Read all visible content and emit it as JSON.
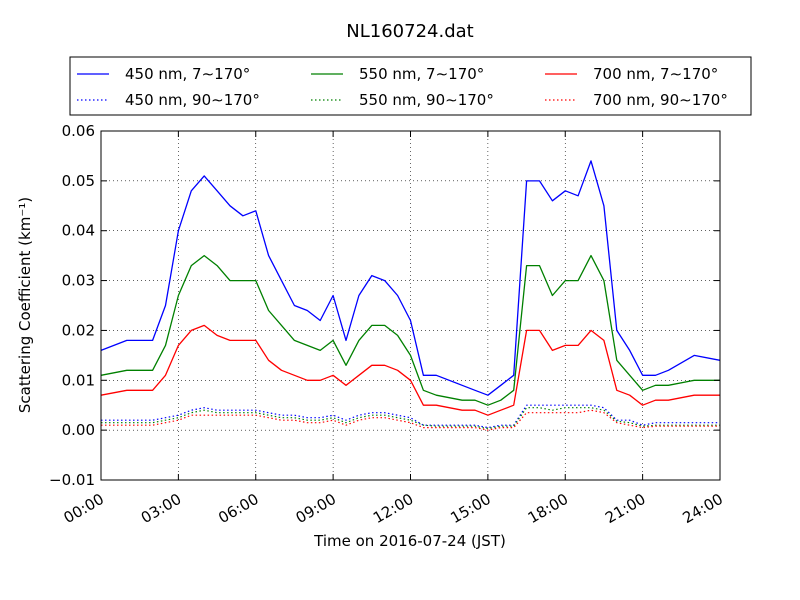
{
  "chart_data": {
    "type": "line",
    "title": "NL160724.dat",
    "xlabel": "Time on 2016-07-24 (JST)",
    "ylabel": "Scattering Coefficient (km⁻¹)",
    "xlim": [
      "00:00",
      "24:00"
    ],
    "ylim": [
      -0.01,
      0.06
    ],
    "x_ticks": [
      "00:00",
      "03:00",
      "06:00",
      "09:00",
      "12:00",
      "15:00",
      "18:00",
      "21:00",
      "24:00"
    ],
    "y_ticks": [
      "−0.01",
      "0.00",
      "0.01",
      "0.02",
      "0.03",
      "0.04",
      "0.05",
      "0.06"
    ],
    "grid": true,
    "legend_position": "top",
    "x": [
      "00:00",
      "01:00",
      "02:00",
      "02:30",
      "03:00",
      "03:30",
      "04:00",
      "04:30",
      "05:00",
      "05:30",
      "06:00",
      "06:30",
      "07:00",
      "07:30",
      "08:00",
      "08:30",
      "09:00",
      "09:30",
      "10:00",
      "10:30",
      "11:00",
      "11:30",
      "12:00",
      "12:30",
      "13:00",
      "14:00",
      "14:30",
      "15:00",
      "15:30",
      "16:00",
      "16:30",
      "17:00",
      "17:30",
      "18:00",
      "18:30",
      "19:00",
      "19:30",
      "20:00",
      "20:30",
      "21:00",
      "21:30",
      "22:00",
      "23:00",
      "24:00"
    ],
    "series": [
      {
        "name": "450 nm, 7∼170°",
        "color": "#0000ff",
        "style": "solid",
        "values": [
          0.016,
          0.018,
          0.018,
          0.025,
          0.04,
          0.048,
          0.051,
          0.048,
          0.045,
          0.043,
          0.044,
          0.035,
          0.03,
          0.025,
          0.024,
          0.022,
          0.027,
          0.018,
          0.027,
          0.031,
          0.03,
          0.027,
          0.022,
          0.011,
          0.011,
          0.009,
          0.008,
          0.007,
          0.009,
          0.011,
          0.05,
          0.05,
          0.046,
          0.048,
          0.047,
          0.054,
          0.045,
          0.02,
          0.016,
          0.011,
          0.011,
          0.012,
          0.015,
          0.014
        ]
      },
      {
        "name": "550 nm, 7∼170°",
        "color": "#008000",
        "style": "solid",
        "values": [
          0.011,
          0.012,
          0.012,
          0.017,
          0.027,
          0.033,
          0.035,
          0.033,
          0.03,
          0.03,
          0.03,
          0.024,
          0.021,
          0.018,
          0.017,
          0.016,
          0.018,
          0.013,
          0.018,
          0.021,
          0.021,
          0.019,
          0.015,
          0.008,
          0.007,
          0.006,
          0.006,
          0.005,
          0.006,
          0.008,
          0.033,
          0.033,
          0.027,
          0.03,
          0.03,
          0.035,
          0.03,
          0.014,
          0.011,
          0.008,
          0.009,
          0.009,
          0.01,
          0.01
        ]
      },
      {
        "name": "700 nm, 7∼170°",
        "color": "#ff0000",
        "style": "solid",
        "values": [
          0.007,
          0.008,
          0.008,
          0.011,
          0.017,
          0.02,
          0.021,
          0.019,
          0.018,
          0.018,
          0.018,
          0.014,
          0.012,
          0.011,
          0.01,
          0.01,
          0.011,
          0.009,
          0.011,
          0.013,
          0.013,
          0.012,
          0.01,
          0.005,
          0.005,
          0.004,
          0.004,
          0.003,
          0.004,
          0.005,
          0.02,
          0.02,
          0.016,
          0.017,
          0.017,
          0.02,
          0.018,
          0.008,
          0.007,
          0.005,
          0.006,
          0.006,
          0.007,
          0.007
        ]
      },
      {
        "name": "450 nm, 90∼170°",
        "color": "#0000ff",
        "style": "dotted",
        "values": [
          0.002,
          0.002,
          0.002,
          0.0025,
          0.003,
          0.004,
          0.0045,
          0.004,
          0.004,
          0.004,
          0.004,
          0.0035,
          0.003,
          0.003,
          0.0025,
          0.0025,
          0.003,
          0.002,
          0.003,
          0.0035,
          0.0035,
          0.003,
          0.0025,
          0.001,
          0.001,
          0.001,
          0.001,
          0.0005,
          0.001,
          0.001,
          0.005,
          0.005,
          0.005,
          0.005,
          0.005,
          0.005,
          0.0045,
          0.002,
          0.002,
          0.001,
          0.0015,
          0.0015,
          0.0015,
          0.0015
        ]
      },
      {
        "name": "550 nm, 90∼170°",
        "color": "#008000",
        "style": "dotted",
        "values": [
          0.0015,
          0.0015,
          0.0015,
          0.002,
          0.0025,
          0.0035,
          0.004,
          0.0035,
          0.0035,
          0.0035,
          0.0035,
          0.003,
          0.0025,
          0.0025,
          0.002,
          0.002,
          0.0025,
          0.0015,
          0.0025,
          0.003,
          0.003,
          0.0025,
          0.002,
          0.001,
          0.0008,
          0.0008,
          0.0008,
          0.0003,
          0.0008,
          0.0008,
          0.0045,
          0.0045,
          0.004,
          0.0045,
          0.0045,
          0.0045,
          0.004,
          0.0018,
          0.0015,
          0.0008,
          0.001,
          0.001,
          0.001,
          0.001
        ]
      },
      {
        "name": "700 nm, 90∼170°",
        "color": "#ff0000",
        "style": "dotted",
        "values": [
          0.001,
          0.001,
          0.001,
          0.0015,
          0.002,
          0.003,
          0.003,
          0.003,
          0.003,
          0.003,
          0.003,
          0.0025,
          0.002,
          0.002,
          0.0015,
          0.0015,
          0.002,
          0.001,
          0.002,
          0.0025,
          0.0025,
          0.002,
          0.0015,
          0.0005,
          0.0005,
          0.0005,
          0.0005,
          0.0,
          0.0005,
          0.0005,
          0.0035,
          0.0035,
          0.0035,
          0.0035,
          0.0035,
          0.004,
          0.0035,
          0.0015,
          0.001,
          0.0005,
          0.0008,
          0.0008,
          0.0008,
          0.0008
        ]
      }
    ]
  }
}
